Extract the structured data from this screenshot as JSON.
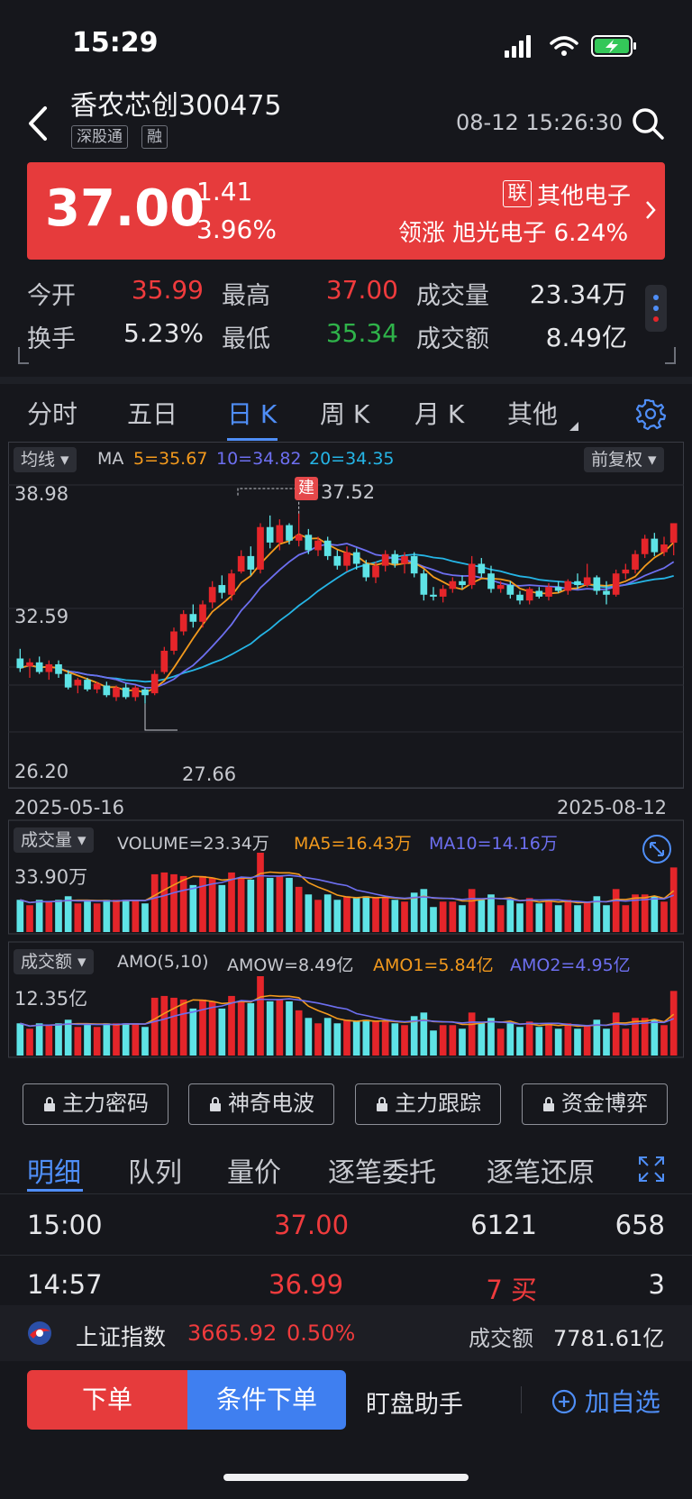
{
  "status_bar": {
    "time": "15:29"
  },
  "header": {
    "stock_name": "香农芯创",
    "stock_code": "300475",
    "tags": [
      "深股通",
      "融"
    ],
    "timestamp": "08-12 15:26:30"
  },
  "quote": {
    "price": "37.00",
    "change": "1.41",
    "change_pct": "3.96%",
    "sector_badge": "联",
    "sector": "其他电子",
    "leader_label": "领涨",
    "leader_name": "旭光电子",
    "leader_pct": "6.24%"
  },
  "stats": {
    "open_label": "今开",
    "open": "35.99",
    "high_label": "最高",
    "high": "37.00",
    "volume_label": "成交量",
    "volume": "23.34万",
    "turnover_label": "换手",
    "turnover": "5.23%",
    "low_label": "最低",
    "low": "35.34",
    "amount_label": "成交额",
    "amount": "8.49亿"
  },
  "period_tabs": [
    "分时",
    "五日",
    "日 K",
    "周 K",
    "月 K",
    "其他"
  ],
  "active_period": 2,
  "chart": {
    "ma_selector": "均线",
    "ma_title": "MA",
    "ma5": "5=35.67",
    "ma10": "10=34.82",
    "ma20": "20=34.35",
    "adjust": "前复权",
    "build_marker": "建",
    "y_top": "38.98",
    "y_mid": "32.59",
    "y_bottom": "26.20",
    "peak_label": "37.52",
    "low_label": "27.66",
    "date_start": "2025-05-16",
    "date_end": "2025-08-12",
    "vol_selector": "成交量",
    "vol_text": "VOLUME=23.34万",
    "vol_ma5": "MA5=16.43万",
    "vol_ma10": "MA10=14.16万",
    "vol_max": "33.90万",
    "amo_selector": "成交额",
    "amo_params": "AMO(5,10)",
    "amow": "AMOW=8.49亿",
    "amo1": "AMO1=5.84亿",
    "amo2": "AMO2=4.95亿",
    "amo_max": "12.35亿",
    "colors": {
      "up": "#e5252a",
      "down": "#5ee3e6",
      "ma5": "#f39a1d",
      "ma10": "#6d6ff0",
      "ma20": "#25b5e6"
    }
  },
  "chart_data": {
    "type": "candlestick",
    "x_range": [
      "2025-05-16",
      "2025-08-12"
    ],
    "ylim": [
      26.2,
      38.98
    ],
    "candles": [
      {
        "o": 30.0,
        "h": 30.5,
        "l": 29.3,
        "c": 29.5
      },
      {
        "o": 29.6,
        "h": 30.0,
        "l": 29.0,
        "c": 29.8
      },
      {
        "o": 29.8,
        "h": 30.1,
        "l": 29.2,
        "c": 29.3
      },
      {
        "o": 29.3,
        "h": 29.9,
        "l": 28.9,
        "c": 29.7
      },
      {
        "o": 29.7,
        "h": 29.9,
        "l": 29.0,
        "c": 29.2
      },
      {
        "o": 29.2,
        "h": 29.4,
        "l": 28.4,
        "c": 28.5
      },
      {
        "o": 28.6,
        "h": 29.0,
        "l": 28.2,
        "c": 28.9
      },
      {
        "o": 28.9,
        "h": 29.0,
        "l": 28.3,
        "c": 28.4
      },
      {
        "o": 28.4,
        "h": 28.8,
        "l": 28.2,
        "c": 28.7
      },
      {
        "o": 28.6,
        "h": 28.8,
        "l": 28.0,
        "c": 28.1
      },
      {
        "o": 28.0,
        "h": 28.6,
        "l": 27.8,
        "c": 28.5
      },
      {
        "o": 28.5,
        "h": 28.7,
        "l": 27.9,
        "c": 28.0
      },
      {
        "o": 28.0,
        "h": 28.6,
        "l": 27.8,
        "c": 28.5
      },
      {
        "o": 28.4,
        "h": 28.5,
        "l": 27.66,
        "c": 28.1
      },
      {
        "o": 28.2,
        "h": 29.4,
        "l": 28.1,
        "c": 29.2
      },
      {
        "o": 29.3,
        "h": 30.6,
        "l": 29.2,
        "c": 30.4
      },
      {
        "o": 30.4,
        "h": 31.6,
        "l": 30.2,
        "c": 31.4
      },
      {
        "o": 31.4,
        "h": 32.5,
        "l": 31.2,
        "c": 32.3
      },
      {
        "o": 32.3,
        "h": 32.8,
        "l": 31.6,
        "c": 31.9
      },
      {
        "o": 31.9,
        "h": 33.0,
        "l": 31.6,
        "c": 32.8
      },
      {
        "o": 32.9,
        "h": 34.0,
        "l": 32.6,
        "c": 33.7
      },
      {
        "o": 33.8,
        "h": 34.3,
        "l": 33.1,
        "c": 33.4
      },
      {
        "o": 33.3,
        "h": 34.6,
        "l": 33.0,
        "c": 34.4
      },
      {
        "o": 34.5,
        "h": 35.6,
        "l": 34.4,
        "c": 35.3
      },
      {
        "o": 35.3,
        "h": 35.8,
        "l": 34.3,
        "c": 34.6
      },
      {
        "o": 34.6,
        "h": 37.0,
        "l": 34.4,
        "c": 36.8
      },
      {
        "o": 36.8,
        "h": 37.4,
        "l": 35.7,
        "c": 36.0
      },
      {
        "o": 36.0,
        "h": 37.2,
        "l": 35.6,
        "c": 36.9
      },
      {
        "o": 36.9,
        "h": 37.0,
        "l": 35.9,
        "c": 36.1
      },
      {
        "o": 36.1,
        "h": 37.5,
        "l": 35.8,
        "c": 36.4
      },
      {
        "o": 36.4,
        "h": 36.7,
        "l": 35.4,
        "c": 35.6
      },
      {
        "o": 35.6,
        "h": 36.3,
        "l": 35.3,
        "c": 36.1
      },
      {
        "o": 36.1,
        "h": 36.3,
        "l": 35.1,
        "c": 35.3
      },
      {
        "o": 35.3,
        "h": 35.6,
        "l": 34.6,
        "c": 34.8
      },
      {
        "o": 34.8,
        "h": 35.8,
        "l": 34.5,
        "c": 35.5
      },
      {
        "o": 35.5,
        "h": 35.7,
        "l": 34.6,
        "c": 34.9
      },
      {
        "o": 34.9,
        "h": 35.1,
        "l": 34.0,
        "c": 34.2
      },
      {
        "o": 34.2,
        "h": 35.0,
        "l": 33.9,
        "c": 34.8
      },
      {
        "o": 34.8,
        "h": 35.6,
        "l": 34.5,
        "c": 35.4
      },
      {
        "o": 35.4,
        "h": 35.6,
        "l": 34.7,
        "c": 34.9
      },
      {
        "o": 34.9,
        "h": 35.5,
        "l": 34.4,
        "c": 35.3
      },
      {
        "o": 35.3,
        "h": 35.5,
        "l": 34.2,
        "c": 34.4
      },
      {
        "o": 34.4,
        "h": 34.6,
        "l": 33.0,
        "c": 33.3
      },
      {
        "o": 33.3,
        "h": 33.7,
        "l": 33.0,
        "c": 33.2
      },
      {
        "o": 33.2,
        "h": 33.8,
        "l": 32.9,
        "c": 33.6
      },
      {
        "o": 33.6,
        "h": 34.2,
        "l": 33.4,
        "c": 34.0
      },
      {
        "o": 34.0,
        "h": 34.3,
        "l": 33.6,
        "c": 33.8
      },
      {
        "o": 33.8,
        "h": 35.3,
        "l": 33.6,
        "c": 34.9
      },
      {
        "o": 34.9,
        "h": 35.2,
        "l": 34.2,
        "c": 34.4
      },
      {
        "o": 34.4,
        "h": 34.8,
        "l": 33.4,
        "c": 33.6
      },
      {
        "o": 33.6,
        "h": 34.0,
        "l": 33.4,
        "c": 33.8
      },
      {
        "o": 33.8,
        "h": 34.0,
        "l": 33.1,
        "c": 33.3
      },
      {
        "o": 33.3,
        "h": 33.5,
        "l": 32.8,
        "c": 33.0
      },
      {
        "o": 33.0,
        "h": 33.7,
        "l": 32.8,
        "c": 33.6
      },
      {
        "o": 33.5,
        "h": 33.7,
        "l": 33.1,
        "c": 33.2
      },
      {
        "o": 33.2,
        "h": 33.9,
        "l": 33.0,
        "c": 33.7
      },
      {
        "o": 33.7,
        "h": 34.0,
        "l": 33.4,
        "c": 33.5
      },
      {
        "o": 33.5,
        "h": 34.1,
        "l": 33.3,
        "c": 34.0
      },
      {
        "o": 34.0,
        "h": 34.4,
        "l": 33.6,
        "c": 33.8
      },
      {
        "o": 33.8,
        "h": 34.9,
        "l": 33.7,
        "c": 34.2
      },
      {
        "o": 34.2,
        "h": 34.3,
        "l": 33.3,
        "c": 33.5
      },
      {
        "o": 33.5,
        "h": 34.0,
        "l": 32.8,
        "c": 33.3
      },
      {
        "o": 33.3,
        "h": 34.6,
        "l": 33.2,
        "c": 34.4
      },
      {
        "o": 34.4,
        "h": 34.9,
        "l": 34.1,
        "c": 34.6
      },
      {
        "o": 34.6,
        "h": 35.6,
        "l": 34.4,
        "c": 35.4
      },
      {
        "o": 35.4,
        "h": 36.4,
        "l": 35.2,
        "c": 36.2
      },
      {
        "o": 36.2,
        "h": 36.5,
        "l": 35.3,
        "c": 35.5
      },
      {
        "o": 35.5,
        "h": 36.3,
        "l": 35.3,
        "c": 35.9
      },
      {
        "o": 35.99,
        "h": 37.0,
        "l": 35.34,
        "c": 37.0
      }
    ],
    "volume_ma_labels": [
      "VOLUME",
      "MA5",
      "MA10"
    ],
    "volume_max_label": "33.90万",
    "amount_max_label": "12.35亿"
  },
  "feature_buttons": [
    "主力密码",
    "神奇电波",
    "主力跟踪",
    "资金博弈"
  ],
  "detail_tabs": [
    "明细",
    "队列",
    "量价",
    "逐笔委托",
    "逐笔还原"
  ],
  "trades": [
    {
      "time": "15:00",
      "price": "37.00",
      "vol": "6121",
      "count": "658"
    },
    {
      "time": "14:57",
      "price": "36.99",
      "vol": "7 买",
      "count": "3"
    }
  ],
  "index_bar": {
    "name": "上证指数",
    "value": "3665.92",
    "pct": "0.50%",
    "amount_label": "成交额",
    "amount": "7781.61亿"
  },
  "actions": {
    "order": "下单",
    "conditional": "条件下单",
    "watch": "盯盘助手",
    "add": "加自选"
  }
}
